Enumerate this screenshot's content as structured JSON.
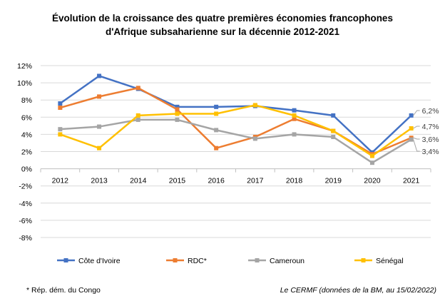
{
  "chart_data": {
    "type": "line",
    "title_line1": "Évolution de la croissance des quatre premières économies francophones",
    "title_line2": "d'Afrique subsaharienne sur la décennie 2012-2021",
    "categories": [
      "2012",
      "2013",
      "2014",
      "2015",
      "2016",
      "2017",
      "2018",
      "2019",
      "2020",
      "2021"
    ],
    "ylim": [
      -8,
      12
    ],
    "yticks": [
      "12%",
      "10%",
      "8%",
      "6%",
      "4%",
      "2%",
      "0%",
      "-2%",
      "-4%",
      "-6%",
      "-8%"
    ],
    "grid": true,
    "legend_position": "bottom",
    "series": [
      {
        "name": "Côte d'Ivoire",
        "color": "#4472C4",
        "values": [
          7.6,
          10.8,
          9.3,
          7.2,
          7.2,
          7.3,
          6.8,
          6.2,
          1.9,
          6.2
        ],
        "end_label": "6,2%"
      },
      {
        "name": "RDC*",
        "color": "#ED7D31",
        "values": [
          7.1,
          8.4,
          9.4,
          6.9,
          2.4,
          3.7,
          5.8,
          4.4,
          1.7,
          3.6
        ],
        "end_label": "3,6%"
      },
      {
        "name": "Cameroun",
        "color": "#A5A5A5",
        "values": [
          4.6,
          4.9,
          5.7,
          5.7,
          4.5,
          3.5,
          4.0,
          3.7,
          0.7,
          3.4
        ],
        "end_label": "3,4%"
      },
      {
        "name": "Sénégal",
        "color": "#FFC000",
        "values": [
          4.0,
          2.4,
          6.2,
          6.4,
          6.4,
          7.4,
          6.2,
          4.4,
          1.5,
          4.7
        ],
        "end_label": "4,7%"
      }
    ]
  },
  "footnote": "* Rép. dém. du Congo",
  "source": "Le CERMF (données de la BM, au 15/02/2022)"
}
